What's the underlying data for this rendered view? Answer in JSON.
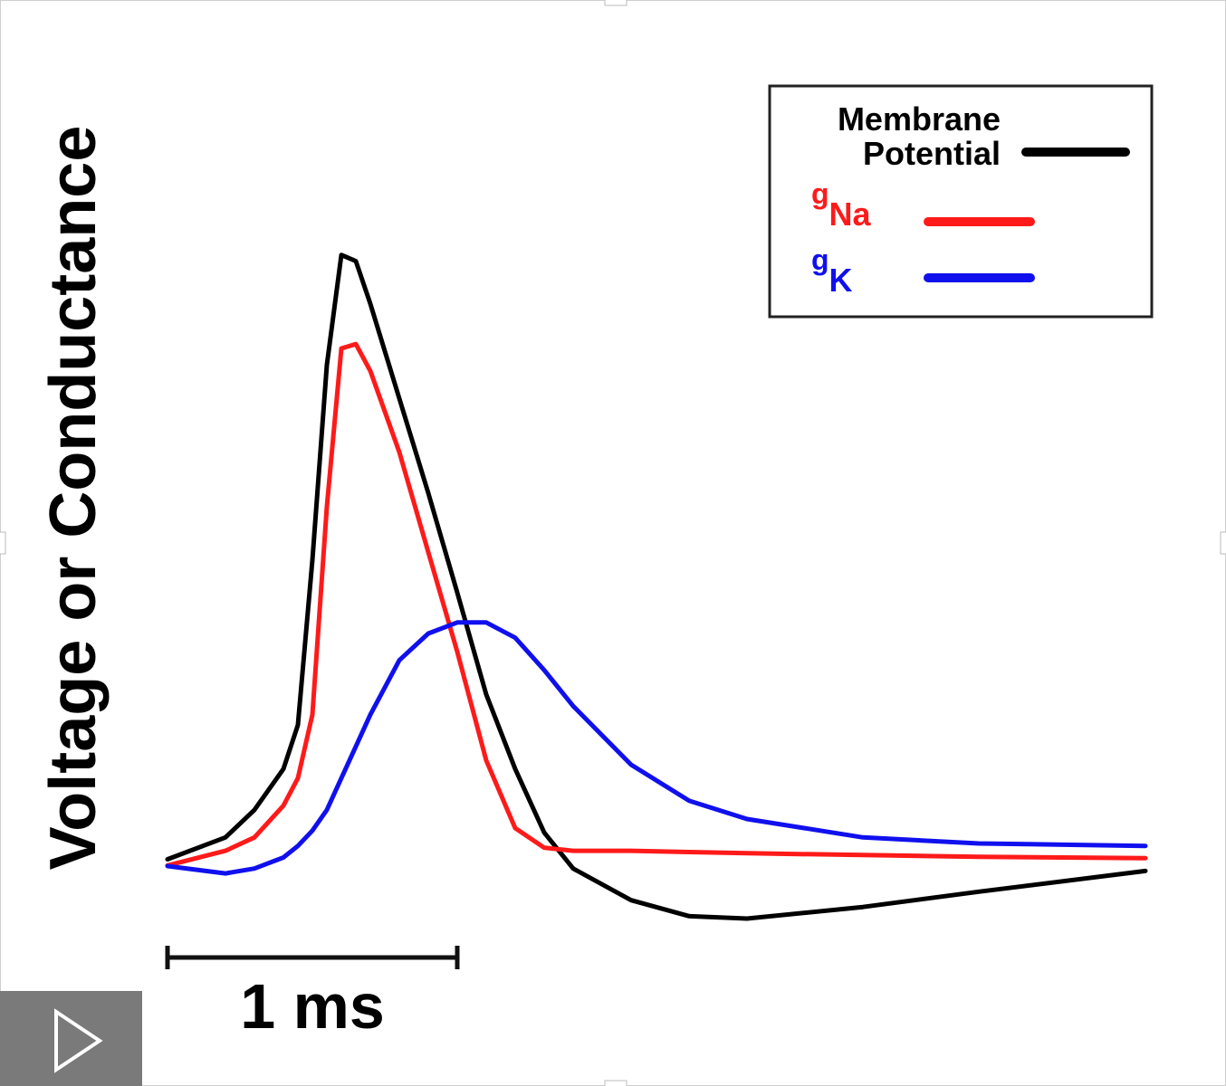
{
  "chart_data": {
    "type": "line",
    "ylabel": "Voltage or Conductance",
    "x": [
      0,
      0.2,
      0.3,
      0.4,
      0.45,
      0.5,
      0.55,
      0.6,
      0.65,
      0.7,
      0.8,
      0.9,
      1.0,
      1.1,
      1.2,
      1.3,
      1.4,
      1.6,
      1.8,
      2.0,
      2.4,
      2.8,
      3.375
    ],
    "xlim": [
      0,
      3.375
    ],
    "ylim": [
      -10,
      100
    ],
    "legend": "upper right",
    "scale_bar": {
      "length": 1,
      "label": "1 ms"
    },
    "series": [
      {
        "name": "Membrane Potential",
        "color": "#000000",
        "values": [
          0,
          3.6,
          8.1,
          14.8,
          22,
          49,
          81,
          99,
          98,
          91,
          75.5,
          60,
          43.7,
          27,
          14.8,
          4.4,
          -1.5,
          -6.7,
          -9.3,
          -9.7,
          -7.8,
          -5.3,
          -1.9
        ]
      },
      {
        "name": {
          "text": "g",
          "sub": "Na"
        },
        "color": "#ff1a1a",
        "values": [
          -1,
          1.4,
          3.6,
          8.8,
          13.3,
          23.7,
          57.8,
          83.7,
          84.4,
          80,
          66.7,
          50.3,
          34,
          16.2,
          5.1,
          1.9,
          1.4,
          1.4,
          1.2,
          1.0,
          0.7,
          0.4,
          0.2
        ]
      },
      {
        "name": {
          "text": "g",
          "sub": "K"
        },
        "color": "#1010ee",
        "values": [
          -1.1,
          -2.3,
          -1.5,
          0.3,
          2.2,
          4.7,
          8.1,
          13.3,
          18.5,
          23.7,
          32.6,
          37,
          38.8,
          38.8,
          36.3,
          31,
          25.1,
          15.5,
          9.6,
          6.6,
          3.6,
          2.6,
          2.2
        ]
      }
    ]
  }
}
